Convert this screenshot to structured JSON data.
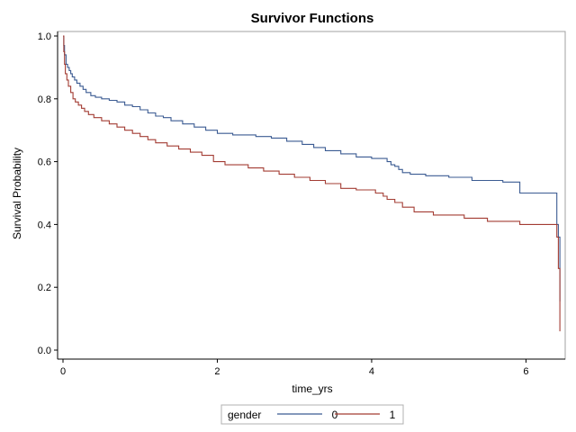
{
  "chart_data": {
    "type": "line",
    "title": "Survivor Functions",
    "xlabel": "time_yrs",
    "ylabel": "Survival Probability",
    "xlim": [
      0,
      6.45
    ],
    "ylim": [
      0,
      1
    ],
    "xticks": [
      0,
      2,
      4,
      6
    ],
    "yticks": [
      0.0,
      0.2,
      0.4,
      0.6,
      0.8,
      1.0
    ],
    "ytick_labels": [
      "0.0",
      "0.2",
      "0.4",
      "0.6",
      "0.8",
      "1.0"
    ],
    "grid": false,
    "step": true,
    "legend": {
      "title": "gender",
      "placement": "bottom-center"
    },
    "series": [
      {
        "name": "0",
        "color": "#3b5b92",
        "x": [
          0,
          0.01,
          0.02,
          0.04,
          0.06,
          0.08,
          0.1,
          0.12,
          0.15,
          0.18,
          0.22,
          0.26,
          0.3,
          0.36,
          0.42,
          0.5,
          0.6,
          0.7,
          0.8,
          0.9,
          1.0,
          1.1,
          1.2,
          1.3,
          1.4,
          1.55,
          1.7,
          1.85,
          2.0,
          2.2,
          2.5,
          2.7,
          2.9,
          3.1,
          3.25,
          3.4,
          3.6,
          3.8,
          4.0,
          4.2,
          4.25,
          4.3,
          4.35,
          4.4,
          4.5,
          4.7,
          5.0,
          5.3,
          5.7,
          5.92,
          6.4,
          6.42,
          6.44
        ],
        "values": [
          1.0,
          0.97,
          0.94,
          0.91,
          0.9,
          0.89,
          0.88,
          0.87,
          0.86,
          0.85,
          0.84,
          0.83,
          0.82,
          0.81,
          0.805,
          0.8,
          0.795,
          0.79,
          0.78,
          0.775,
          0.765,
          0.755,
          0.745,
          0.74,
          0.73,
          0.72,
          0.71,
          0.7,
          0.69,
          0.685,
          0.68,
          0.675,
          0.665,
          0.655,
          0.645,
          0.635,
          0.625,
          0.615,
          0.61,
          0.6,
          0.59,
          0.585,
          0.575,
          0.565,
          0.56,
          0.555,
          0.55,
          0.54,
          0.535,
          0.5,
          0.4,
          0.36,
          0.155
        ]
      },
      {
        "name": "1",
        "color": "#a33c33",
        "x": [
          0,
          0.01,
          0.02,
          0.03,
          0.05,
          0.07,
          0.1,
          0.13,
          0.16,
          0.2,
          0.24,
          0.28,
          0.33,
          0.4,
          0.5,
          0.6,
          0.7,
          0.8,
          0.9,
          1.0,
          1.1,
          1.2,
          1.35,
          1.5,
          1.65,
          1.8,
          1.95,
          2.1,
          2.4,
          2.6,
          2.8,
          3.0,
          3.2,
          3.4,
          3.6,
          3.8,
          4.05,
          4.15,
          4.2,
          4.3,
          4.4,
          4.55,
          4.8,
          5.2,
          5.5,
          5.92,
          6.4,
          6.42,
          6.44
        ],
        "values": [
          1.0,
          0.95,
          0.91,
          0.88,
          0.86,
          0.84,
          0.82,
          0.8,
          0.79,
          0.78,
          0.77,
          0.76,
          0.75,
          0.74,
          0.73,
          0.72,
          0.71,
          0.7,
          0.69,
          0.68,
          0.67,
          0.66,
          0.65,
          0.64,
          0.63,
          0.62,
          0.6,
          0.59,
          0.58,
          0.57,
          0.56,
          0.55,
          0.54,
          0.53,
          0.515,
          0.51,
          0.5,
          0.49,
          0.48,
          0.47,
          0.455,
          0.44,
          0.43,
          0.42,
          0.41,
          0.4,
          0.36,
          0.26,
          0.06
        ]
      }
    ]
  }
}
